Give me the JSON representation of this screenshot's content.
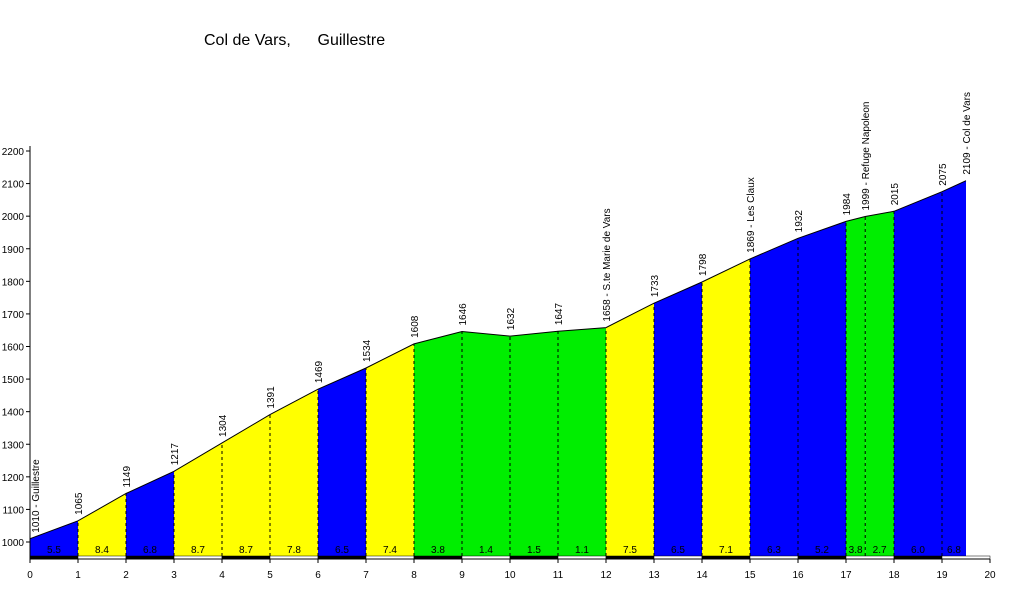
{
  "chart_data": {
    "type": "area",
    "title": "Col de Vars,      Guillestre",
    "xlabel": "",
    "ylabel": "",
    "xlim": [
      0,
      20
    ],
    "ylim": [
      950,
      2200
    ],
    "x_ticks": [
      "0",
      "1",
      "2",
      "3",
      "4",
      "5",
      "6",
      "7",
      "8",
      "9",
      "10",
      "11",
      "12",
      "13",
      "14",
      "15",
      "16",
      "17",
      "18",
      "19",
      "20"
    ],
    "y_ticks": [
      "1000",
      "1100",
      "1200",
      "1300",
      "1400",
      "1500",
      "1600",
      "1700",
      "1800",
      "1900",
      "2000",
      "2100",
      "2200"
    ],
    "points": [
      {
        "x": 0,
        "y": 1010,
        "label": "1010 - Guillestre"
      },
      {
        "x": 1,
        "y": 1065,
        "label": "1065"
      },
      {
        "x": 2,
        "y": 1149,
        "label": "1149"
      },
      {
        "x": 3,
        "y": 1217,
        "label": "1217"
      },
      {
        "x": 4,
        "y": 1304,
        "label": "1304"
      },
      {
        "x": 5,
        "y": 1391,
        "label": "1391"
      },
      {
        "x": 6,
        "y": 1469,
        "label": "1469"
      },
      {
        "x": 7,
        "y": 1534,
        "label": "1534"
      },
      {
        "x": 8,
        "y": 1608,
        "label": "1608"
      },
      {
        "x": 9,
        "y": 1646,
        "label": "1646"
      },
      {
        "x": 10,
        "y": 1632,
        "label": "1632"
      },
      {
        "x": 11,
        "y": 1647,
        "label": "1647"
      },
      {
        "x": 12,
        "y": 1658,
        "label": "1658 - S.te Marie de Vars"
      },
      {
        "x": 13,
        "y": 1733,
        "label": "1733"
      },
      {
        "x": 14,
        "y": 1798,
        "label": "1798"
      },
      {
        "x": 15,
        "y": 1869,
        "label": "1869 - Les Claux"
      },
      {
        "x": 16,
        "y": 1932,
        "label": "1932"
      },
      {
        "x": 17,
        "y": 1984,
        "label": "1984"
      },
      {
        "x": 17.4,
        "y": 1999,
        "label": "1999 - Refuge Napoleon"
      },
      {
        "x": 18,
        "y": 2015,
        "label": "2015"
      },
      {
        "x": 19,
        "y": 2075,
        "label": "2075"
      },
      {
        "x": 19.5,
        "y": 2109,
        "label": "2109 - Col de Vars"
      }
    ],
    "segments": [
      {
        "x0": 0,
        "x1": 1,
        "gradient": "5.5",
        "color": "#0000ff"
      },
      {
        "x0": 1,
        "x1": 2,
        "gradient": "8.4",
        "color": "#ffff00"
      },
      {
        "x0": 2,
        "x1": 3,
        "gradient": "6.8",
        "color": "#0000ff"
      },
      {
        "x0": 3,
        "x1": 4,
        "gradient": "8.7",
        "color": "#ffff00"
      },
      {
        "x0": 4,
        "x1": 5,
        "gradient": "8.7",
        "color": "#ffff00"
      },
      {
        "x0": 5,
        "x1": 6,
        "gradient": "7.8",
        "color": "#ffff00"
      },
      {
        "x0": 6,
        "x1": 7,
        "gradient": "6.5",
        "color": "#0000ff"
      },
      {
        "x0": 7,
        "x1": 8,
        "gradient": "7.4",
        "color": "#ffff00"
      },
      {
        "x0": 8,
        "x1": 9,
        "gradient": "3.8",
        "color": "#00ee00"
      },
      {
        "x0": 9,
        "x1": 10,
        "gradient": "1.4",
        "color": "#00ee00"
      },
      {
        "x0": 10,
        "x1": 11,
        "gradient": "1.5",
        "color": "#00ee00"
      },
      {
        "x0": 11,
        "x1": 12,
        "gradient": "1.1",
        "color": "#00ee00"
      },
      {
        "x0": 12,
        "x1": 13,
        "gradient": "7.5",
        "color": "#ffff00"
      },
      {
        "x0": 13,
        "x1": 14,
        "gradient": "6.5",
        "color": "#0000ff"
      },
      {
        "x0": 14,
        "x1": 15,
        "gradient": "7.1",
        "color": "#ffff00"
      },
      {
        "x0": 15,
        "x1": 16,
        "gradient": "6.3",
        "color": "#0000ff"
      },
      {
        "x0": 16,
        "x1": 17,
        "gradient": "5.2",
        "color": "#0000ff"
      },
      {
        "x0": 17,
        "x1": 17.4,
        "gradient": "3.8",
        "color": "#00ee00"
      },
      {
        "x0": 17.4,
        "x1": 18,
        "gradient": "2.7",
        "color": "#00ee00"
      },
      {
        "x0": 18,
        "x1": 19,
        "gradient": "6.0",
        "color": "#0000ff"
      },
      {
        "x0": 19,
        "x1": 19.5,
        "gradient": "6.8",
        "color": "#0000ff"
      }
    ]
  }
}
